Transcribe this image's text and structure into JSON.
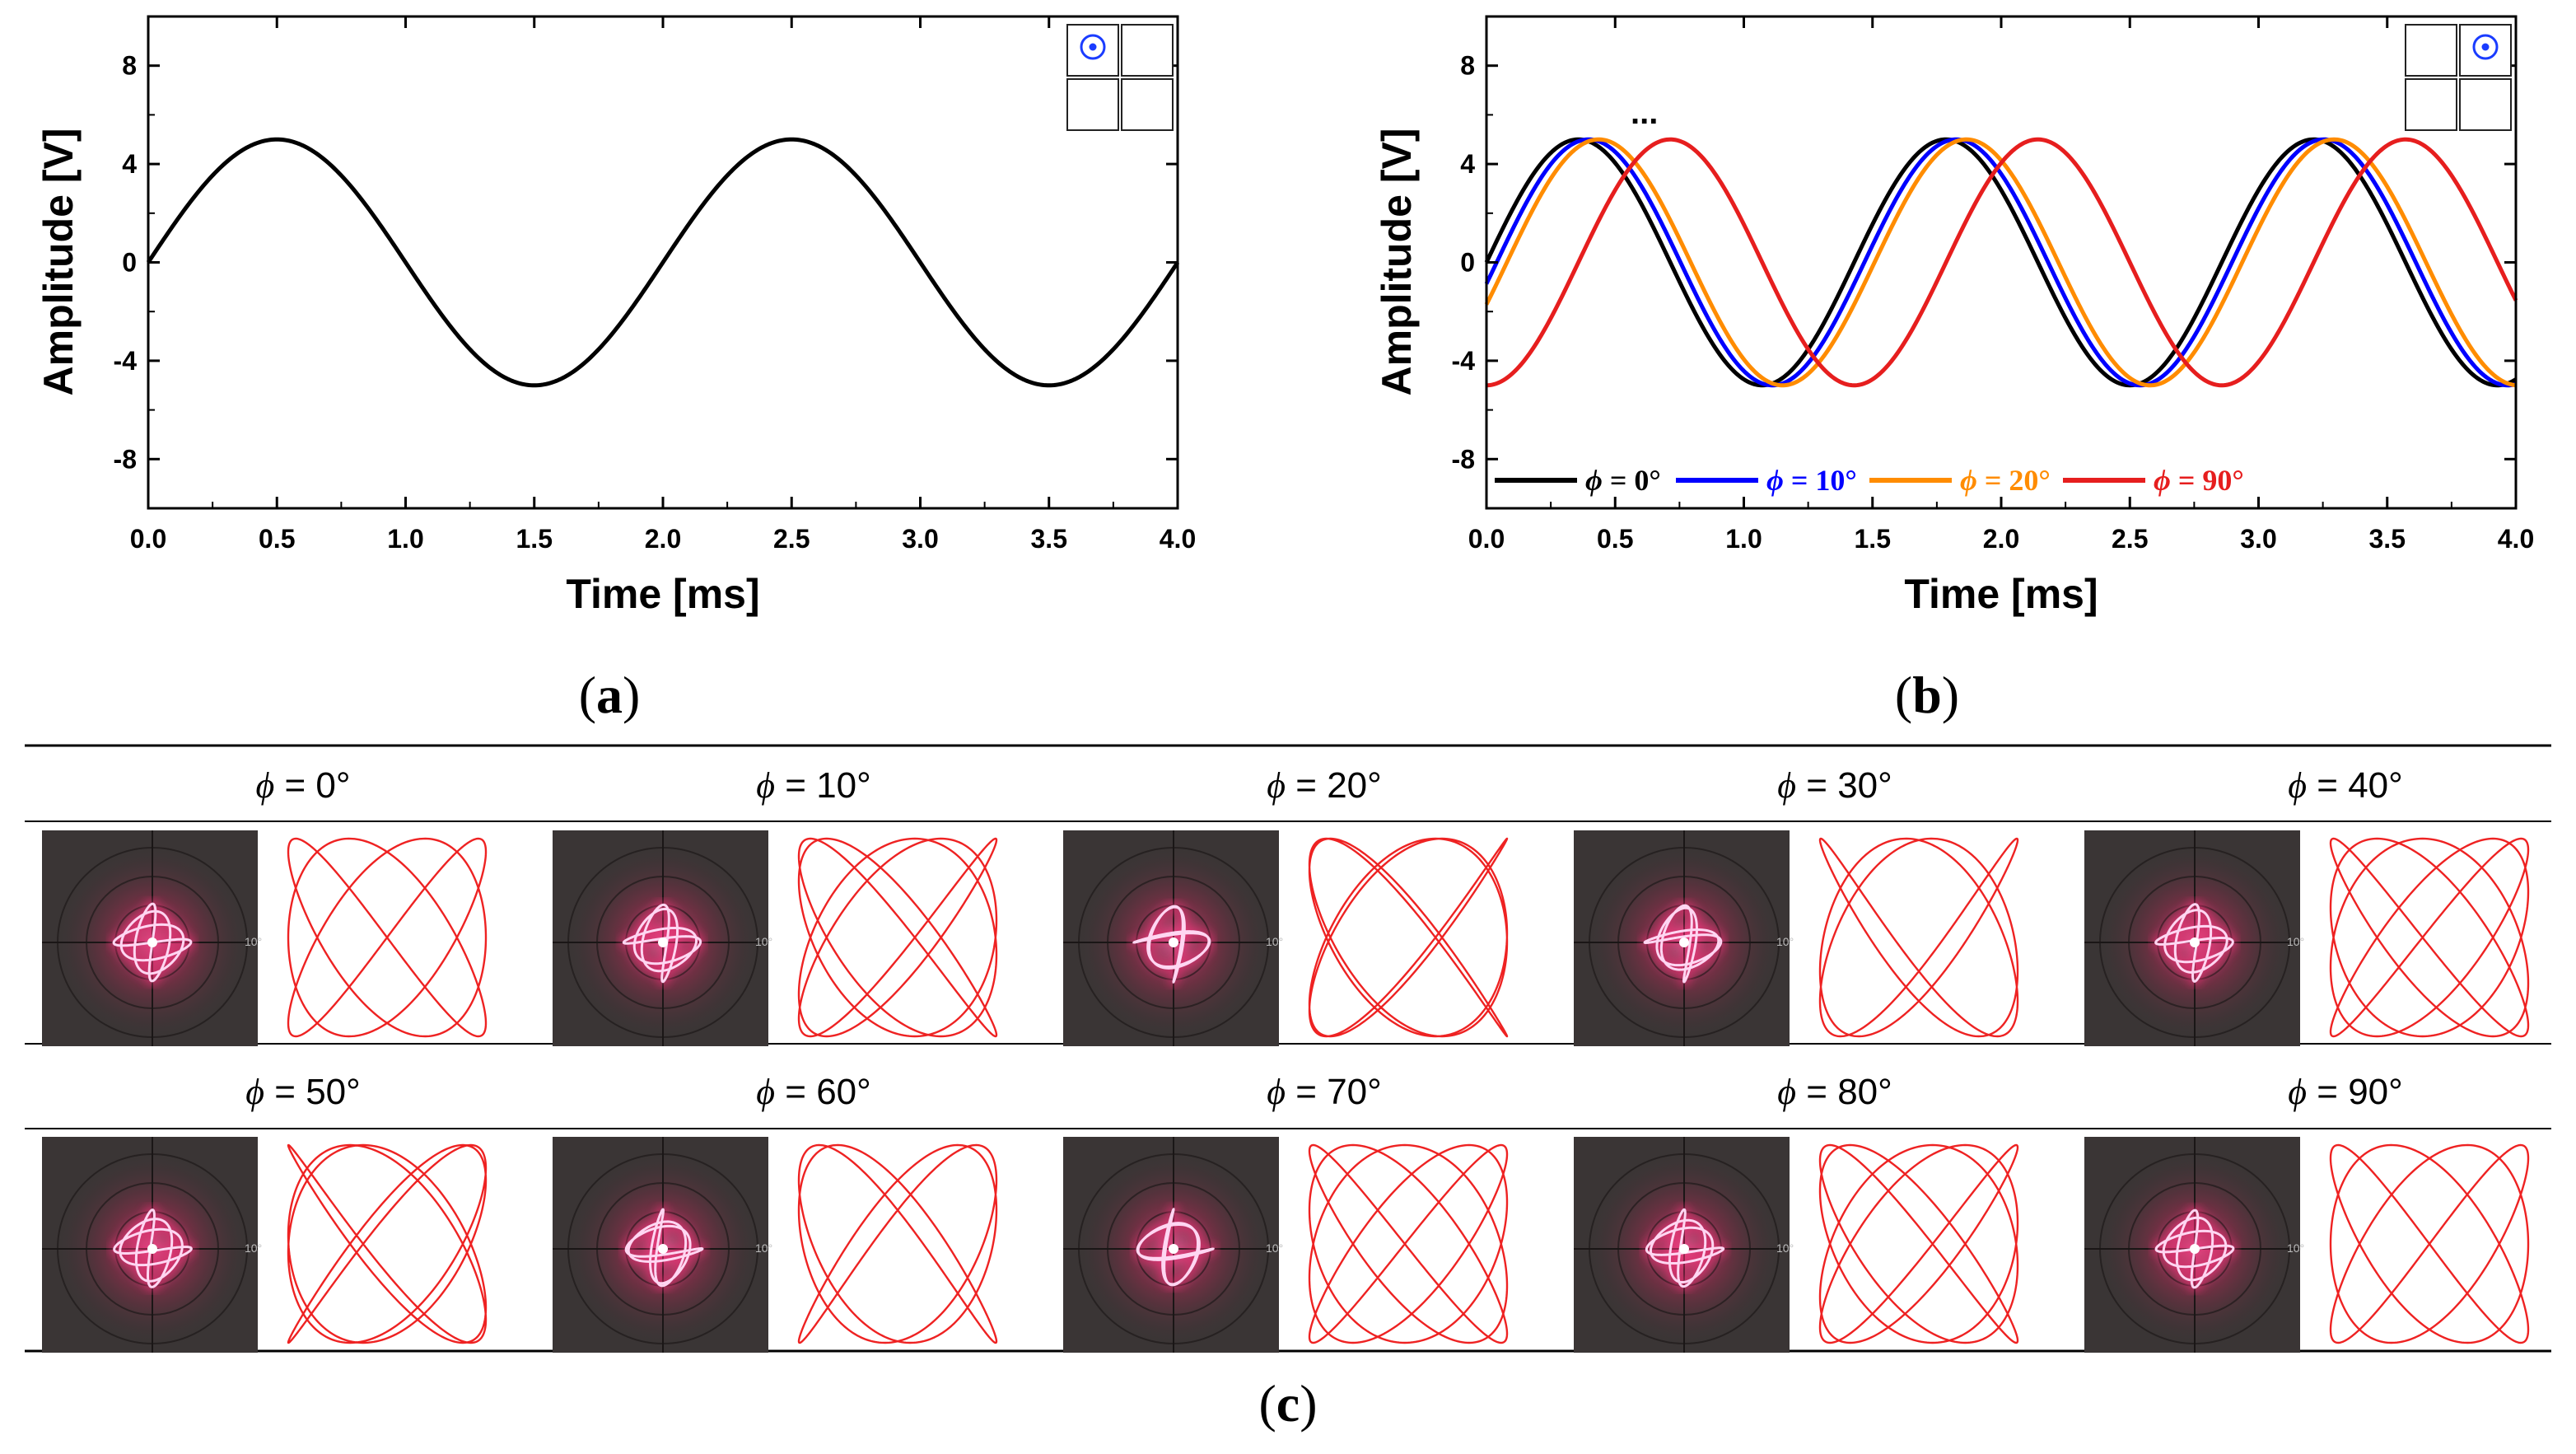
{
  "panel_labels": {
    "a": "a",
    "b": "b",
    "c": "c"
  },
  "chart_data": [
    {
      "panel": "a",
      "type": "line",
      "xlabel": "Time [ms]",
      "ylabel": "Amplitude [V]",
      "xlim": [
        0,
        4
      ],
      "ylim": [
        -10,
        10
      ],
      "xticks": [
        "0.0",
        "0.5",
        "1.0",
        "1.5",
        "2.0",
        "2.5",
        "3.0",
        "3.5",
        "4.0"
      ],
      "yticks": [
        "8",
        "4",
        "0",
        "-4",
        "-8"
      ],
      "series": [
        {
          "color": "#000000",
          "amplitude": 5,
          "frequency_khz": 0.5,
          "phase_deg": 0
        }
      ],
      "inset_selected_cell": 0
    },
    {
      "panel": "b",
      "type": "line",
      "xlabel": "Time [ms]",
      "ylabel": "Amplitude [V]",
      "xlim": [
        0,
        4
      ],
      "ylim": [
        -10,
        10
      ],
      "xticks": [
        "0.0",
        "0.5",
        "1.0",
        "1.5",
        "2.0",
        "2.5",
        "3.0",
        "3.5",
        "4.0"
      ],
      "yticks": [
        "8",
        "4",
        "0",
        "-4",
        "-8"
      ],
      "ellipsis": "...",
      "series": [
        {
          "legend_symbol": "ϕ",
          "legend_value": " = 0°",
          "color": "#000000",
          "amplitude": 5,
          "frequency_khz": 0.7,
          "phase_deg": 0
        },
        {
          "legend_symbol": "ϕ",
          "legend_value": " = 10°",
          "color": "#0000ff",
          "amplitude": 5,
          "frequency_khz": 0.7,
          "phase_deg": -10
        },
        {
          "legend_symbol": "ϕ",
          "legend_value": " = 20°",
          "color": "#ff8c00",
          "amplitude": 5,
          "frequency_khz": 0.7,
          "phase_deg": -20
        },
        {
          "legend_symbol": "ϕ",
          "legend_value": " = 90°",
          "color": "#e61e1e",
          "amplitude": 5,
          "frequency_khz": 0.7,
          "phase_deg": -90
        }
      ],
      "legend_position": "bottom-left",
      "inset_selected_cell": 1
    }
  ],
  "phase_grid": {
    "symbol": "ϕ",
    "rows": [
      [
        {
          "label": " = 0°",
          "phase_deg": 0
        },
        {
          "label": " = 10°",
          "phase_deg": 10
        },
        {
          "label": " = 20°",
          "phase_deg": 20
        },
        {
          "label": " = 30°",
          "phase_deg": 30
        },
        {
          "label": " = 40°",
          "phase_deg": 40
        }
      ],
      [
        {
          "label": " = 50°",
          "phase_deg": 50
        },
        {
          "label": " = 60°",
          "phase_deg": 60
        },
        {
          "label": " = 70°",
          "phase_deg": 70
        },
        {
          "label": " = 80°",
          "phase_deg": 80
        },
        {
          "label": " = 90°",
          "phase_deg": 90
        }
      ]
    ],
    "photo_scale_label": "10°"
  },
  "colors": {
    "lissajous": "#ee2222",
    "photo_bg": "#3a3535",
    "laser_core": "#ffd6f2",
    "laser_glow": "#ff2f7a",
    "inset_dot": "#1a3cff"
  }
}
